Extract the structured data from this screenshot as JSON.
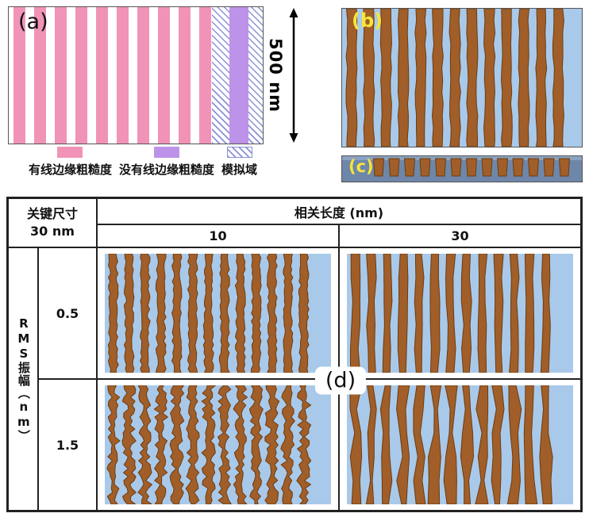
{
  "panel_a": {
    "label": "(a)",
    "scale_label": "500 nm",
    "legend": [
      {
        "label": "有线边缘粗糙度"
      },
      {
        "label": "没有线边缘粗糙度"
      },
      {
        "label": "模拟域"
      }
    ]
  },
  "panel_b": {
    "label": "(b)"
  },
  "panel_c": {
    "label": "(c)"
  },
  "panel_d": {
    "label": "(d)",
    "corner_header": {
      "line1": "关键尺寸",
      "line2": "30 nm"
    },
    "col_group_header": "相关长度 (nm)",
    "col_headers": [
      "10",
      "30"
    ],
    "row_group_header": "RMS振幅",
    "row_group_unit": "（nm）",
    "row_headers": [
      "0.5",
      "1.5"
    ]
  },
  "colors": {
    "pink": "#F193B6",
    "purple": "#BD93EA",
    "hatch_line": "#8A90D8",
    "blue_background": "#A9C9EA",
    "line_brown": "#A15E28",
    "line_outline": "#6B3D12",
    "cross_section_bg": "#6E87A9",
    "cross_section_top": "#8BA3C2",
    "panel_label_yellow": "#F6E53A"
  }
}
